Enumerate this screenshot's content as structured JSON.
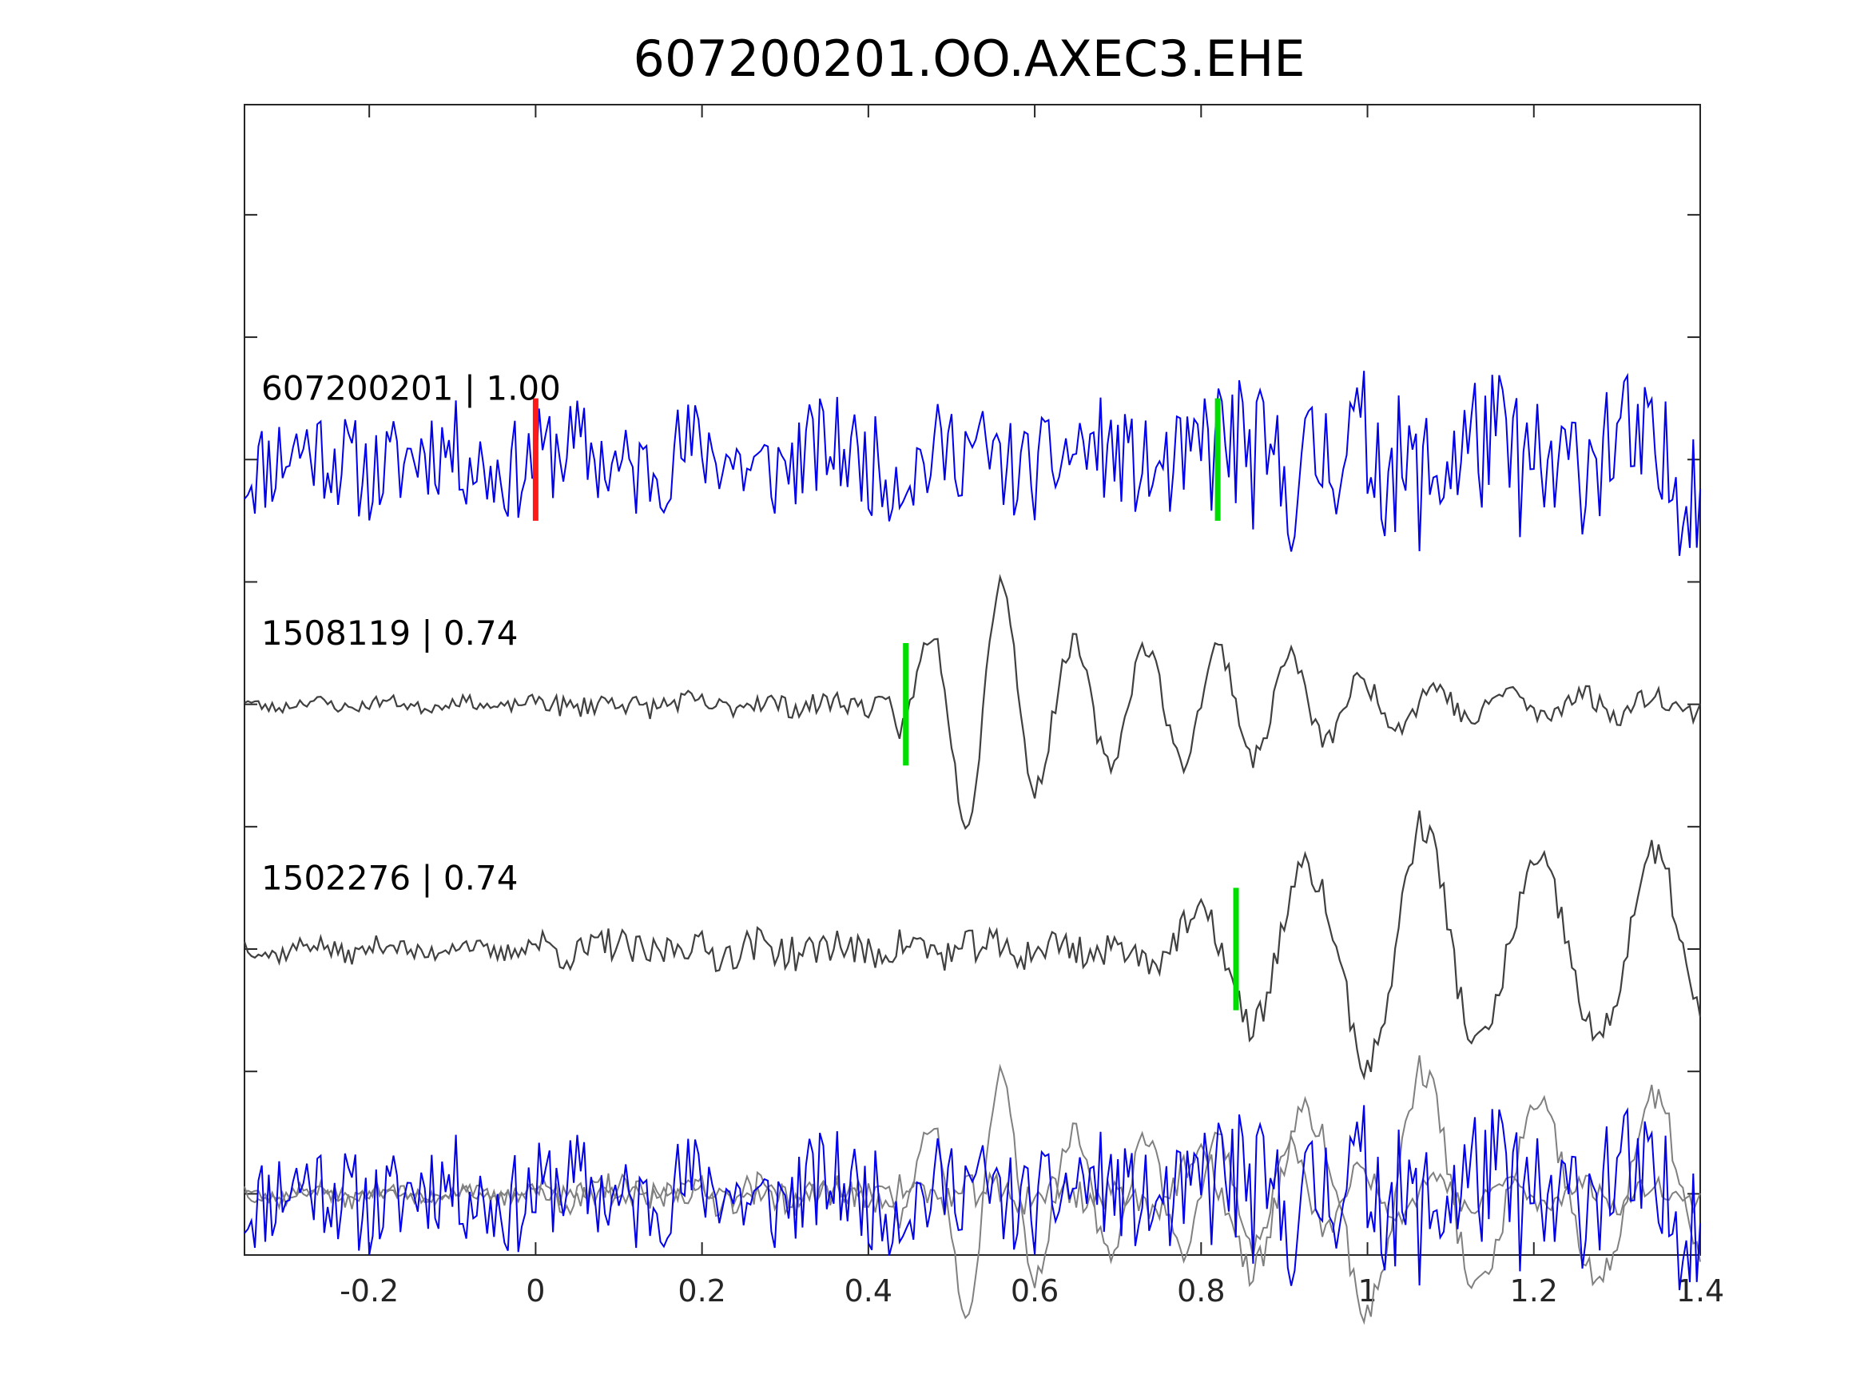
{
  "chart_data": {
    "type": "line",
    "title": "607200201.OO.AXEC3.EHE",
    "xlabel": "",
    "ylabel": "",
    "xlim": [
      -0.35,
      1.4
    ],
    "xticks": [
      -0.2,
      0,
      0.2,
      0.4,
      0.6,
      0.8,
      1,
      1.2,
      1.4
    ],
    "xtick_labels": [
      "-0.2",
      "0",
      "0.2",
      "0.4",
      "0.6",
      "0.8",
      "1",
      "1.2",
      "1.4"
    ],
    "ylim": [
      -4.5,
      4.9
    ],
    "yticks": [
      -4,
      -3,
      -2,
      -1,
      0,
      1,
      2,
      3,
      4
    ],
    "grid": false,
    "colors": {
      "target": "#0000ee",
      "template": "#404040",
      "overlay": "#808080",
      "red_pick": "#ff1a1a",
      "green_pick": "#00dd00"
    },
    "traces": [
      {
        "name": "607200201 | 1.00",
        "offset": 2,
        "color": "#0000ee",
        "style": "noisy",
        "amp": 0.42,
        "burst_start": 0.8,
        "burst_amp": 1.5,
        "seed": 11,
        "picks": [
          {
            "t": 0.0,
            "color": "#ff1a1a"
          },
          {
            "t": 0.82,
            "color": "#00dd00"
          }
        ]
      },
      {
        "name": "1508119 | 0.74",
        "offset": 0,
        "color": "#404040",
        "style": "wavelet",
        "noise_amp": 0.05,
        "onset": 0.0,
        "wave_start": 0.43,
        "wave_amp": 1.0,
        "wave_env": [
          [
            0.43,
            0.2
          ],
          [
            0.53,
            1.05
          ],
          [
            0.57,
            1.0
          ],
          [
            0.62,
            0.5
          ],
          [
            0.8,
            0.45
          ],
          [
            0.9,
            0.4
          ],
          [
            1.0,
            0.15
          ],
          [
            1.2,
            0.08
          ],
          [
            1.4,
            0.04
          ]
        ],
        "freq": 11.5,
        "seed": 23,
        "picks": [
          {
            "t": 0.445,
            "color": "#00dd00"
          }
        ]
      },
      {
        "name": "1502276 | 0.74",
        "offset": -2,
        "color": "#404040",
        "style": "wavelet",
        "noise_amp": 0.08,
        "onset": 0.0,
        "wave_start": 0.72,
        "wave_amp": 1.0,
        "wave_env": [
          [
            0.72,
            0.1
          ],
          [
            0.8,
            0.25
          ],
          [
            0.86,
            0.6
          ],
          [
            0.95,
            0.7
          ],
          [
            1.0,
            1.0
          ],
          [
            1.06,
            1.0
          ],
          [
            1.15,
            0.7
          ],
          [
            1.25,
            0.75
          ],
          [
            1.4,
            0.7
          ]
        ],
        "freq": 7.2,
        "seed": 37,
        "picks": [
          {
            "t": 0.842,
            "color": "#00dd00"
          }
        ]
      }
    ],
    "overlay_offset": -4
  }
}
